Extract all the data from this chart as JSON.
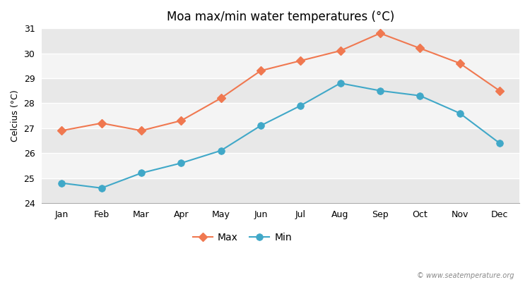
{
  "title": "Moa max/min water temperatures (°C)",
  "ylabel": "Celcius (°C)",
  "months": [
    "Jan",
    "Feb",
    "Mar",
    "Apr",
    "May",
    "Jun",
    "Jul",
    "Aug",
    "Sep",
    "Oct",
    "Nov",
    "Dec"
  ],
  "max_values": [
    26.9,
    27.2,
    26.9,
    27.3,
    28.2,
    29.3,
    29.7,
    30.1,
    30.8,
    30.2,
    29.6,
    28.5
  ],
  "min_values": [
    24.8,
    24.6,
    25.2,
    25.6,
    26.1,
    27.1,
    27.9,
    28.8,
    28.5,
    28.3,
    27.6,
    26.4
  ],
  "max_color": "#f07850",
  "min_color": "#40a8c8",
  "ylim": [
    24,
    31
  ],
  "yticks": [
    24,
    25,
    26,
    27,
    28,
    29,
    30,
    31
  ],
  "band_colors": [
    "#e8e8e8",
    "#f4f4f4"
  ],
  "grid_color": "#ffffff",
  "fig_bg": "#ffffff",
  "legend_labels": [
    "Max",
    "Min"
  ],
  "watermark": "© www.seatemperature.org",
  "title_fontsize": 12,
  "label_fontsize": 9,
  "tick_fontsize": 9
}
